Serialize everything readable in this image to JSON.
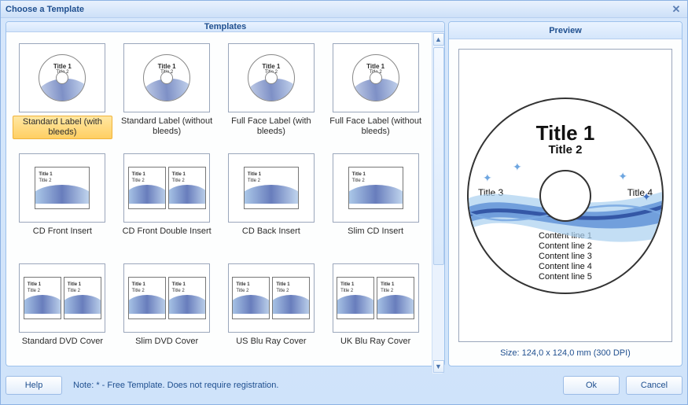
{
  "window": {
    "title": "Choose a Template"
  },
  "panels": {
    "templates": "Templates",
    "preview": "Preview"
  },
  "colors": {
    "window_bg_top": "#d7e7fb",
    "window_bg_bottom": "#cfe3fa",
    "border": "#8db2e3",
    "header_text": "#1f4f8f",
    "selected_bg_top": "#ffe7a2",
    "selected_bg_bottom": "#ffcf63",
    "selected_border": "#f0b33a",
    "wave_dark": "#2d4fa0",
    "wave_mid": "#5d8fd6",
    "wave_light": "#a9d0ef"
  },
  "templates": [
    {
      "label": "Standard Label (with bleeds)",
      "kind": "disc",
      "selected": true
    },
    {
      "label": "Standard Label (without bleeds)",
      "kind": "disc",
      "selected": false
    },
    {
      "label": "Full Face Label (with bleeds)",
      "kind": "disc",
      "selected": false
    },
    {
      "label": "Full Face Label (without bleeds)",
      "kind": "disc",
      "selected": false
    },
    {
      "label": "CD Front Insert",
      "kind": "insert1",
      "selected": false
    },
    {
      "label": "CD Front Double Insert",
      "kind": "insert2",
      "selected": false
    },
    {
      "label": "CD Back Insert",
      "kind": "insert1b",
      "selected": false
    },
    {
      "label": "Slim CD Insert",
      "kind": "insert1",
      "selected": false
    },
    {
      "label": "Standard DVD Cover",
      "kind": "cover2",
      "selected": false
    },
    {
      "label": "Slim DVD Cover",
      "kind": "cover2",
      "selected": false
    },
    {
      "label": "US Blu Ray Cover",
      "kind": "cover2",
      "selected": false
    },
    {
      "label": "UK Blu Ray Cover",
      "kind": "cover2",
      "selected": false
    }
  ],
  "thumb_text": {
    "t1": "Title 1",
    "t2": "Title 2"
  },
  "preview": {
    "title1": "Title 1",
    "title2": "Title 2",
    "title3": "Title 3",
    "title4": "Title 4",
    "content": [
      "Content line 1",
      "Content line 2",
      "Content line 3",
      "Content line 4",
      "Content line 5"
    ],
    "meta": "Size: 124,0 x 124,0 mm (300 DPI)"
  },
  "footer": {
    "help": "Help",
    "note": "Note: * - Free Template. Does not require registration.",
    "ok": "Ok",
    "cancel": "Cancel"
  }
}
